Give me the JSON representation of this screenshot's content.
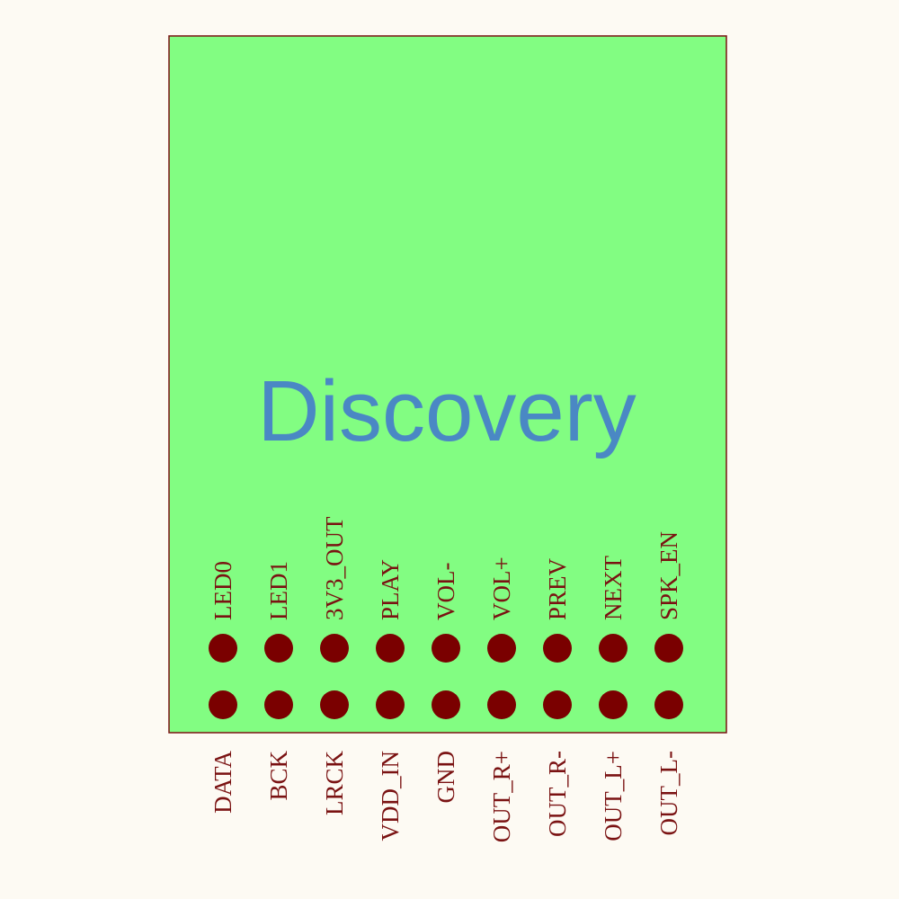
{
  "board": {
    "title": "Discovery",
    "top_pins": [
      "LED0",
      "LED1",
      "3V3_OUT",
      "PLAY",
      "VOL-",
      "VOL+",
      "PREV",
      "NEXT",
      "SPK_EN"
    ],
    "bottom_pins": [
      "DATA",
      "BCK",
      "LRCK",
      "VDD_IN",
      "GND",
      "OUT_R+",
      "OUT_R-",
      "OUT_L+",
      "OUT_L-"
    ]
  }
}
